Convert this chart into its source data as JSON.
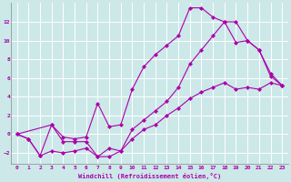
{
  "xlabel": "Windchill (Refroidissement éolien,°C)",
  "bg_color": "#cce8e8",
  "grid_color": "#ffffff",
  "line_color": "#aa00aa",
  "xlim": [
    -0.5,
    23.5
  ],
  "ylim": [
    -3.2,
    14.0
  ],
  "xticks": [
    0,
    1,
    2,
    3,
    4,
    5,
    6,
    7,
    8,
    9,
    10,
    11,
    12,
    13,
    14,
    15,
    16,
    17,
    18,
    19,
    20,
    21,
    22,
    23
  ],
  "yticks": [
    -2,
    0,
    2,
    4,
    6,
    8,
    10,
    12
  ],
  "line1_x": [
    0,
    1,
    2,
    3,
    4,
    5,
    6,
    7,
    8,
    9,
    10,
    11,
    12,
    13,
    14,
    15,
    16,
    17,
    18,
    19,
    20,
    21,
    22,
    23
  ],
  "line1_y": [
    0,
    -0.5,
    -2.3,
    -1.8,
    -2.0,
    -1.8,
    -1.5,
    -2.4,
    -2.4,
    -1.8,
    -0.5,
    0.5,
    1.0,
    2.0,
    2.8,
    3.8,
    4.5,
    5.0,
    5.5,
    4.8,
    5.0,
    4.8,
    5.5,
    5.2
  ],
  "line2_x": [
    0,
    3,
    4,
    5,
    6,
    7,
    8,
    9,
    10,
    11,
    12,
    13,
    14,
    15,
    16,
    17,
    18,
    19,
    20,
    21,
    22,
    23
  ],
  "line2_y": [
    0,
    1.0,
    -0.3,
    -0.5,
    -0.3,
    3.3,
    0.8,
    1.0,
    4.8,
    7.2,
    8.5,
    9.5,
    10.5,
    13.5,
    13.5,
    12.5,
    12.0,
    12.0,
    10.0,
    9.0,
    6.2,
    5.2
  ],
  "line3_x": [
    0,
    1,
    2,
    3,
    4,
    5,
    6,
    7,
    8,
    9,
    10,
    11,
    12,
    13,
    14,
    15,
    16,
    17,
    18,
    19,
    20,
    21,
    22,
    23
  ],
  "line3_y": [
    0,
    -0.5,
    -2.3,
    1.0,
    -0.8,
    -0.8,
    -0.8,
    -2.4,
    -1.5,
    -1.8,
    0.5,
    1.5,
    2.5,
    3.5,
    5.0,
    7.5,
    9.0,
    10.5,
    12.0,
    9.8,
    10.0,
    9.0,
    6.5,
    5.2
  ]
}
